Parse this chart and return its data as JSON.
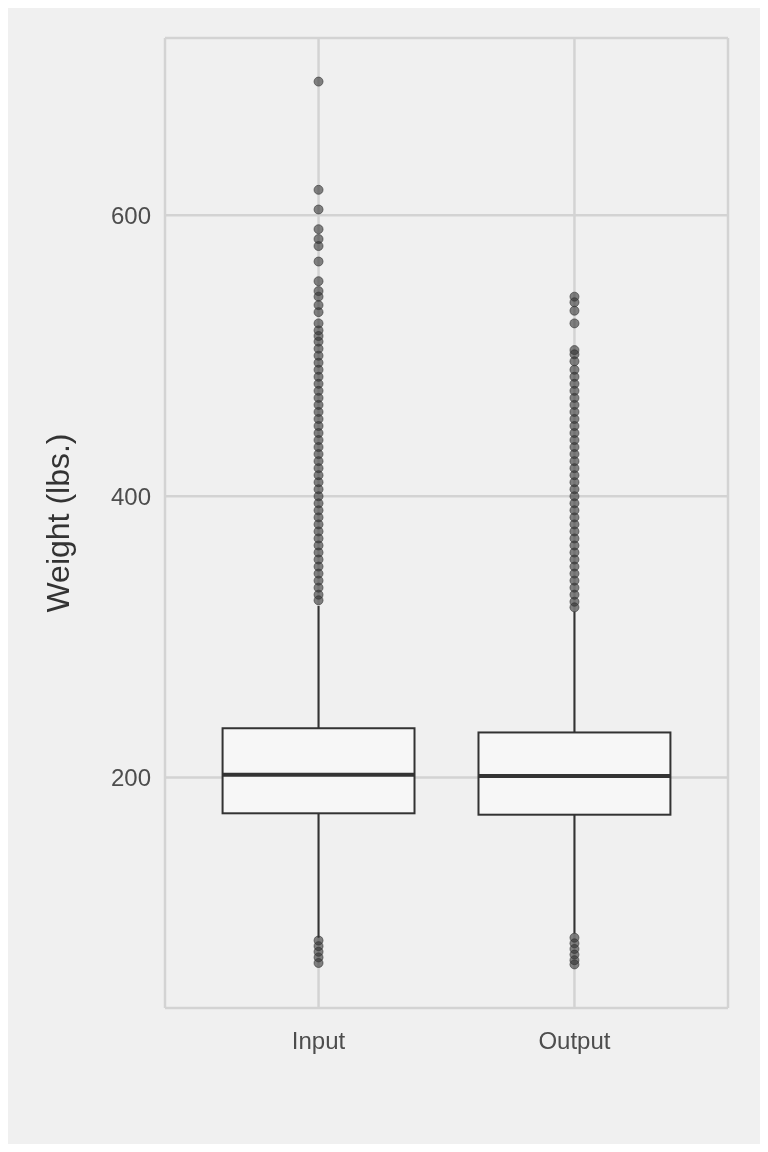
{
  "chart_data": {
    "type": "box",
    "ylabel": "Weight (lbs.)",
    "categories": [
      "Input",
      "Output"
    ],
    "ylim": [
      36,
      726
    ],
    "yticks": [
      200,
      400,
      600
    ],
    "grid": true,
    "series": [
      {
        "color": "#333333",
        "boxes": [
          {
            "low": 86,
            "q1": 174.5,
            "median": 202,
            "q3": 235,
            "high": 322,
            "outliers": [
              695,
              618,
              604,
              590,
              583,
              578,
              567,
              553,
              546,
              542,
              536,
              531,
              523,
              518,
              514,
              510,
              505,
              500,
              495,
              490,
              485,
              480,
              475,
              470,
              465,
              460,
              455,
              450,
              445,
              440,
              435,
              430,
              425,
              420,
              415,
              410,
              405,
              400,
              395,
              390,
              385,
              380,
              375,
              370,
              365,
              360,
              355,
              350,
              345,
              340,
              335,
              330,
              326,
              84,
              80,
              76,
              72,
              68
            ]
          },
          {
            "low": 89,
            "q1": 173.5,
            "median": 201,
            "q3": 232,
            "high": 318,
            "outliers": [
              542,
              538,
              532,
              523,
              504,
              501,
              496,
              490,
              485,
              480,
              475,
              470,
              465,
              460,
              455,
              450,
              445,
              440,
              435,
              430,
              425,
              420,
              415,
              410,
              405,
              400,
              395,
              390,
              385,
              380,
              375,
              370,
              365,
              360,
              355,
              350,
              345,
              340,
              335,
              330,
              325,
              321,
              86,
              82,
              78,
              74,
              70,
              67
            ]
          }
        ]
      }
    ]
  }
}
